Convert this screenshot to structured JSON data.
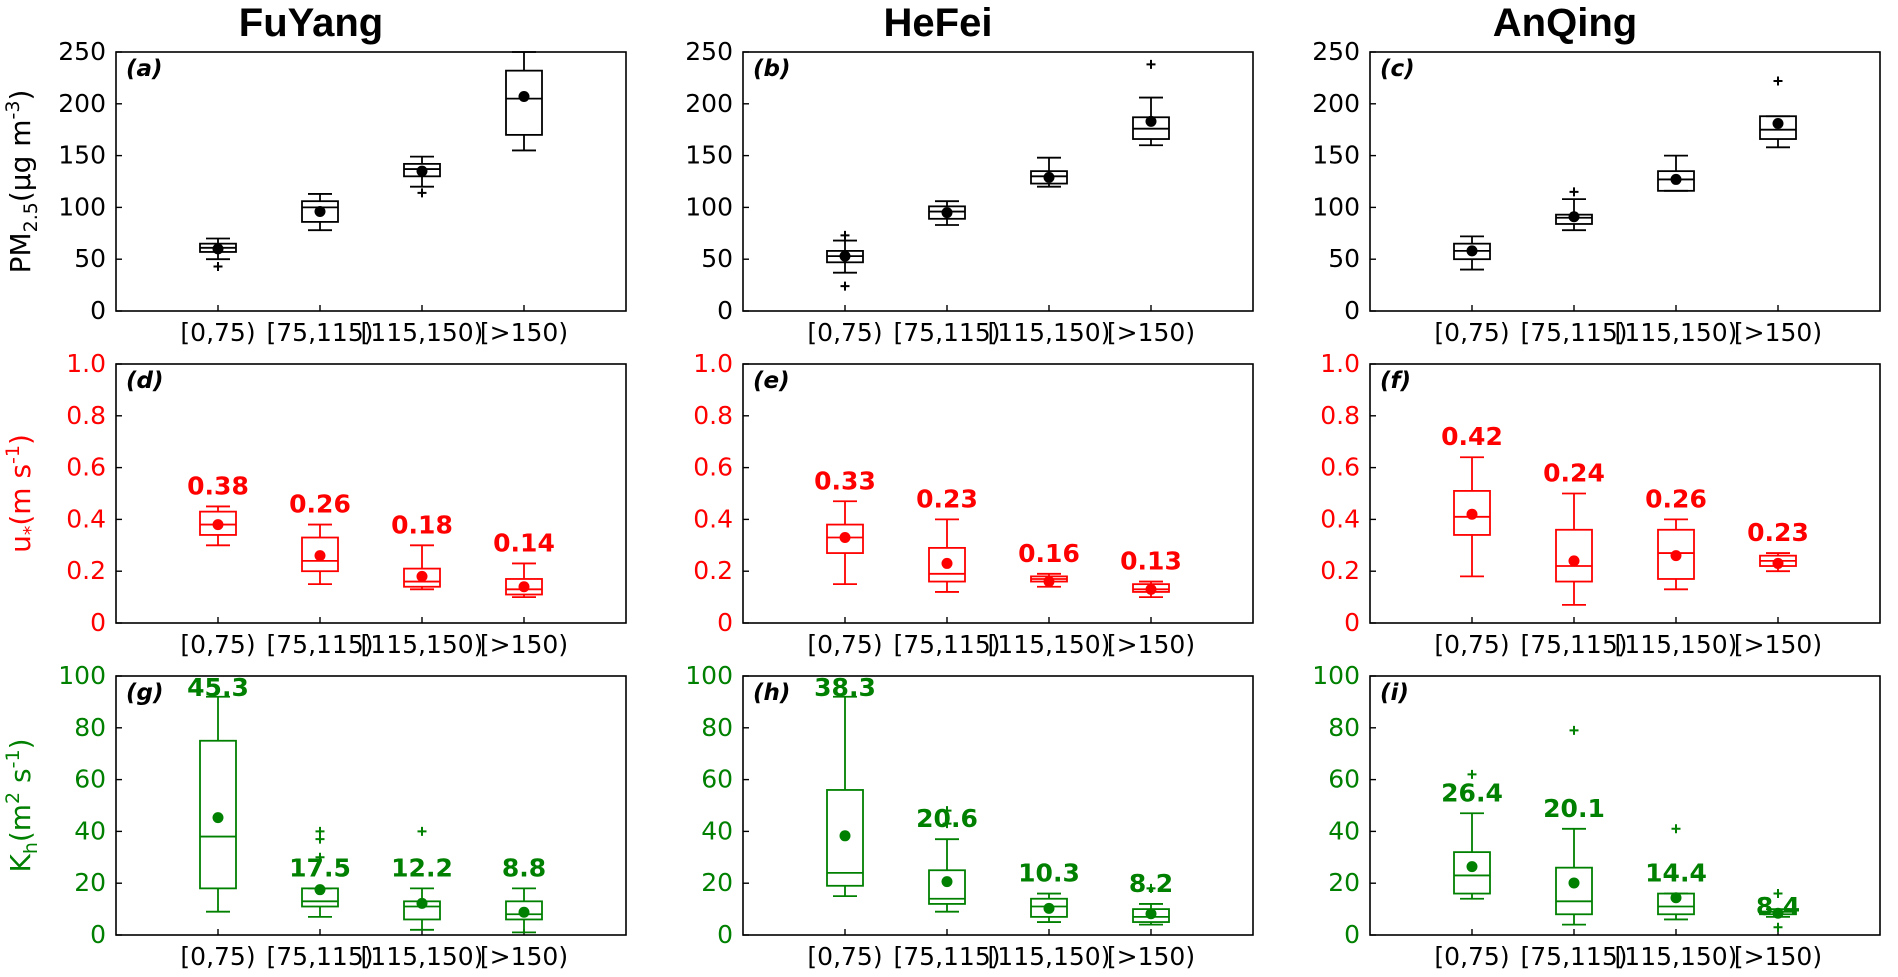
{
  "colors": {
    "pm": "#000000",
    "ustar": "#ff0000",
    "kh": "#008000"
  },
  "chart_data": {
    "type": "box",
    "columns": [
      "FuYang",
      "HeFei",
      "AnQing"
    ],
    "categories": [
      "[0,75)",
      "[75,115)",
      "[115,150)",
      "[>150)"
    ],
    "rows": [
      {
        "id": "pm",
        "ylabel": "PM_{2.5}(μg m^{-3})",
        "color": "#000000",
        "ylim": [
          0,
          250
        ],
        "yticks": [
          "0",
          "50",
          "100",
          "150",
          "200",
          "250"
        ],
        "yticks_values": [
          0,
          50,
          100,
          150,
          200,
          250
        ]
      },
      {
        "id": "ustar",
        "ylabel": "u_{*}(m s^{-1})",
        "color": "#ff0000",
        "ylim": [
          0,
          1.0
        ],
        "yticks": [
          "0",
          "0.2",
          "0.4",
          "0.6",
          "0.8",
          "1.0"
        ],
        "yticks_values": [
          0,
          0.2,
          0.4,
          0.6,
          0.8,
          1.0
        ]
      },
      {
        "id": "kh",
        "ylabel": "K_{h}(m^{2} s^{-1})",
        "color": "#008000",
        "ylim": [
          0,
          100
        ],
        "yticks": [
          "0",
          "20",
          "40",
          "60",
          "80",
          "100"
        ],
        "yticks_values": [
          0,
          20,
          40,
          60,
          80,
          100
        ]
      }
    ],
    "panels": [
      {
        "row": 0,
        "col": 0,
        "label": "(a)",
        "boxes": [
          {
            "whislo": 50,
            "q1": 57,
            "med": 61,
            "q3": 65,
            "whishi": 70,
            "mean": 60,
            "fliers": [
              43
            ]
          },
          {
            "whislo": 78,
            "q1": 86,
            "med": 100,
            "q3": 106,
            "whishi": 113,
            "mean": 96,
            "fliers": []
          },
          {
            "whislo": 120,
            "q1": 130,
            "med": 137,
            "q3": 142,
            "whishi": 149,
            "mean": 135,
            "fliers": [
              114
            ]
          },
          {
            "whislo": 155,
            "q1": 170,
            "med": 205,
            "q3": 232,
            "whishi": 250,
            "mean": 207,
            "fliers": []
          }
        ]
      },
      {
        "row": 0,
        "col": 1,
        "label": "(b)",
        "boxes": [
          {
            "whislo": 37,
            "q1": 47,
            "med": 53,
            "q3": 58,
            "whishi": 68,
            "mean": 53,
            "fliers": [
              24,
              73
            ]
          },
          {
            "whislo": 83,
            "q1": 89,
            "med": 96,
            "q3": 101,
            "whishi": 106,
            "mean": 95,
            "fliers": []
          },
          {
            "whislo": 120,
            "q1": 123,
            "med": 130,
            "q3": 135,
            "whishi": 148,
            "mean": 129,
            "fliers": []
          },
          {
            "whislo": 160,
            "q1": 166,
            "med": 176,
            "q3": 187,
            "whishi": 206,
            "mean": 183,
            "fliers": [
              238
            ]
          }
        ]
      },
      {
        "row": 0,
        "col": 2,
        "label": "(c)",
        "boxes": [
          {
            "whislo": 40,
            "q1": 50,
            "med": 58,
            "q3": 65,
            "whishi": 72,
            "mean": 58,
            "fliers": []
          },
          {
            "whislo": 78,
            "q1": 84,
            "med": 90,
            "q3": 93,
            "whishi": 108,
            "mean": 91,
            "fliers": [
              115
            ]
          },
          {
            "whislo": 116,
            "q1": 116,
            "med": 127,
            "q3": 135,
            "whishi": 150,
            "mean": 127,
            "fliers": []
          },
          {
            "whislo": 158,
            "q1": 166,
            "med": 175,
            "q3": 188,
            "whishi": 188,
            "mean": 181,
            "fliers": [
              222
            ]
          }
        ]
      },
      {
        "row": 1,
        "col": 0,
        "label": "(d)",
        "boxes": [
          {
            "whislo": 0.3,
            "q1": 0.34,
            "med": 0.38,
            "q3": 0.43,
            "whishi": 0.45,
            "mean": 0.38,
            "fliers": []
          },
          {
            "whislo": 0.15,
            "q1": 0.2,
            "med": 0.24,
            "q3": 0.33,
            "whishi": 0.38,
            "mean": 0.26,
            "fliers": []
          },
          {
            "whislo": 0.13,
            "q1": 0.14,
            "med": 0.16,
            "q3": 0.21,
            "whishi": 0.3,
            "mean": 0.18,
            "fliers": []
          },
          {
            "whislo": 0.1,
            "q1": 0.11,
            "med": 0.13,
            "q3": 0.17,
            "whishi": 0.23,
            "mean": 0.14,
            "fliers": []
          }
        ],
        "value_labels": [
          "0.38",
          "0.26",
          "0.18",
          "0.14"
        ]
      },
      {
        "row": 1,
        "col": 1,
        "label": "(e)",
        "boxes": [
          {
            "whislo": 0.15,
            "q1": 0.27,
            "med": 0.33,
            "q3": 0.38,
            "whishi": 0.47,
            "mean": 0.33,
            "fliers": []
          },
          {
            "whislo": 0.12,
            "q1": 0.16,
            "med": 0.19,
            "q3": 0.29,
            "whishi": 0.4,
            "mean": 0.23,
            "fliers": []
          },
          {
            "whislo": 0.14,
            "q1": 0.16,
            "med": 0.17,
            "q3": 0.18,
            "whishi": 0.19,
            "mean": 0.16,
            "fliers": []
          },
          {
            "whislo": 0.1,
            "q1": 0.12,
            "med": 0.13,
            "q3": 0.15,
            "whishi": 0.16,
            "mean": 0.13,
            "fliers": []
          }
        ],
        "value_labels": [
          "0.33",
          "0.23",
          "0.16",
          "0.13"
        ]
      },
      {
        "row": 1,
        "col": 2,
        "label": "(f)",
        "boxes": [
          {
            "whislo": 0.18,
            "q1": 0.34,
            "med": 0.41,
            "q3": 0.51,
            "whishi": 0.64,
            "mean": 0.42,
            "fliers": []
          },
          {
            "whislo": 0.07,
            "q1": 0.16,
            "med": 0.22,
            "q3": 0.36,
            "whishi": 0.5,
            "mean": 0.24,
            "fliers": []
          },
          {
            "whislo": 0.13,
            "q1": 0.17,
            "med": 0.27,
            "q3": 0.36,
            "whishi": 0.4,
            "mean": 0.26,
            "fliers": []
          },
          {
            "whislo": 0.2,
            "q1": 0.22,
            "med": 0.24,
            "q3": 0.26,
            "whishi": 0.27,
            "mean": 0.23,
            "fliers": []
          }
        ],
        "value_labels": [
          "0.42",
          "0.24",
          "0.26",
          "0.23"
        ]
      },
      {
        "row": 2,
        "col": 0,
        "label": "(g)",
        "boxes": [
          {
            "whislo": 9,
            "q1": 18,
            "med": 38,
            "q3": 75,
            "whishi": 92,
            "mean": 45.3,
            "fliers": []
          },
          {
            "whislo": 7,
            "q1": 11,
            "med": 13,
            "q3": 18,
            "whishi": 18,
            "mean": 17.5,
            "fliers": [
              30,
              37,
              40
            ]
          },
          {
            "whislo": 2,
            "q1": 6,
            "med": 11,
            "q3": 13,
            "whishi": 18,
            "mean": 12.2,
            "fliers": [
              40
            ]
          },
          {
            "whislo": 1,
            "q1": 6,
            "med": 8,
            "q3": 13,
            "whishi": 18,
            "mean": 8.8,
            "fliers": []
          }
        ],
        "value_labels": [
          "45.3",
          "17.5",
          "12.2",
          "8.8"
        ]
      },
      {
        "row": 2,
        "col": 1,
        "label": "(h)",
        "boxes": [
          {
            "whislo": 15,
            "q1": 19,
            "med": 24,
            "q3": 56,
            "whishi": 92,
            "mean": 38.3,
            "fliers": []
          },
          {
            "whislo": 9,
            "q1": 12,
            "med": 14,
            "q3": 25,
            "whishi": 37,
            "mean": 20.6,
            "fliers": [
              43,
              48
            ]
          },
          {
            "whislo": 5,
            "q1": 7,
            "med": 11,
            "q3": 14,
            "whishi": 16,
            "mean": 10.3,
            "fliers": []
          },
          {
            "whislo": 4,
            "q1": 5,
            "med": 7,
            "q3": 10,
            "whishi": 12,
            "mean": 8.2,
            "fliers": [
              18
            ]
          }
        ],
        "value_labels": [
          "38.3",
          "20.6",
          "10.3",
          "8.2"
        ]
      },
      {
        "row": 2,
        "col": 2,
        "label": "(i)",
        "boxes": [
          {
            "whislo": 14,
            "q1": 16,
            "med": 23,
            "q3": 32,
            "whishi": 47,
            "mean": 26.4,
            "fliers": [
              62
            ]
          },
          {
            "whislo": 4,
            "q1": 8,
            "med": 13,
            "q3": 26,
            "whishi": 41,
            "mean": 20.1,
            "fliers": [
              79
            ]
          },
          {
            "whislo": 6,
            "q1": 8,
            "med": 11,
            "q3": 16,
            "whishi": 16,
            "mean": 14.4,
            "fliers": [
              41
            ]
          },
          {
            "whislo": 7,
            "q1": 8,
            "med": 9,
            "q3": 9,
            "whishi": 10,
            "mean": 8.4,
            "fliers": [
              3,
              16
            ]
          }
        ],
        "value_labels": [
          "26.4",
          "20.1",
          "14.4",
          "8.4"
        ]
      }
    ],
    "grid": false
  }
}
